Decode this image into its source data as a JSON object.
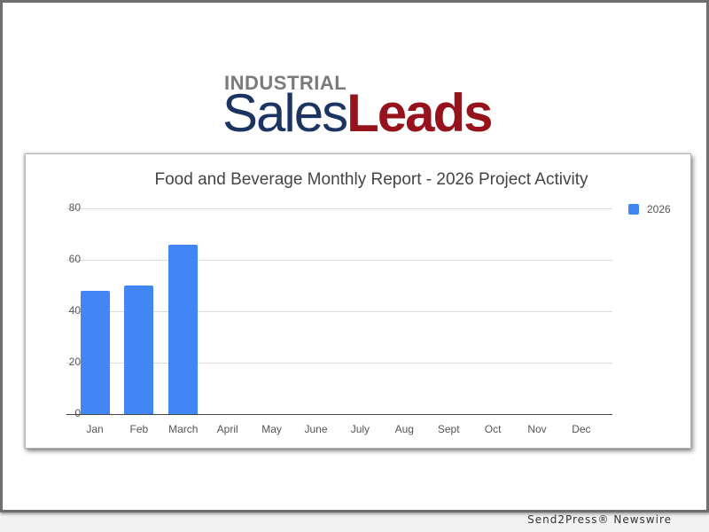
{
  "logo": {
    "top": "INDUSTRIAL",
    "sales": "Sales",
    "leads": "Leads"
  },
  "footer": {
    "text": "Send2Press® Newswire"
  },
  "colors": {
    "bar": "#4285f4",
    "logo_blue": "#1c3461",
    "logo_red": "#96121c",
    "logo_gray": "#7a7a7a"
  },
  "chart_data": {
    "type": "bar",
    "title": "Food and Beverage Monthly Report - 2026 Project Activity",
    "categories": [
      "Jan",
      "Feb",
      "March",
      "April",
      "May",
      "June",
      "July",
      "Aug",
      "Sept",
      "Oct",
      "Nov",
      "Dec"
    ],
    "series": [
      {
        "name": "2026",
        "values": [
          48,
          50,
          66,
          0,
          0,
          0,
          0,
          0,
          0,
          0,
          0,
          0
        ]
      }
    ],
    "xlabel": "",
    "ylabel": "",
    "ylim": [
      0,
      80
    ],
    "yticks": [
      "0",
      "20",
      "40",
      "60",
      "80"
    ],
    "grid": true,
    "legend_position": "right"
  }
}
